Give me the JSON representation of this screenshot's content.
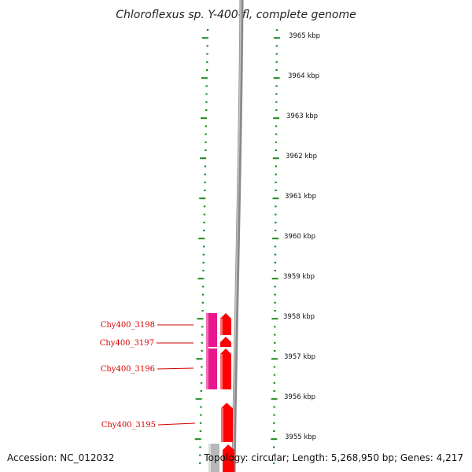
{
  "title": "Chloroflexus sp. Y-400-fl, complete genome",
  "footer": {
    "accession": "Accession: NC_012032",
    "topology": "Topology: circular; Length: 5,268,950 bp; Genes: 4,217"
  },
  "ruler": {
    "unit": "kbp",
    "labels": [
      "3965 kbp",
      "3964 kbp",
      "3963 kbp",
      "3962 kbp",
      "3961 kbp",
      "3960 kbp",
      "3959 kbp",
      "3958 kbp",
      "3957 kbp",
      "3956 kbp",
      "3955 kbp"
    ]
  },
  "genes": [
    {
      "label": "Chy400_3198",
      "strand": "forward"
    },
    {
      "label": "Chy400_3197",
      "strand": "forward"
    },
    {
      "label": "Chy400_3196",
      "strand": "forward"
    },
    {
      "label": "Chy400_3195",
      "strand": "forward"
    }
  ],
  "colors": {
    "tick": "#1a8a1a",
    "backbone": "#808080",
    "gene_forward": "#ff0000",
    "gene_block": "#e8188c",
    "gene_label": "#d40000",
    "other_gene": "#b0b0b0"
  }
}
